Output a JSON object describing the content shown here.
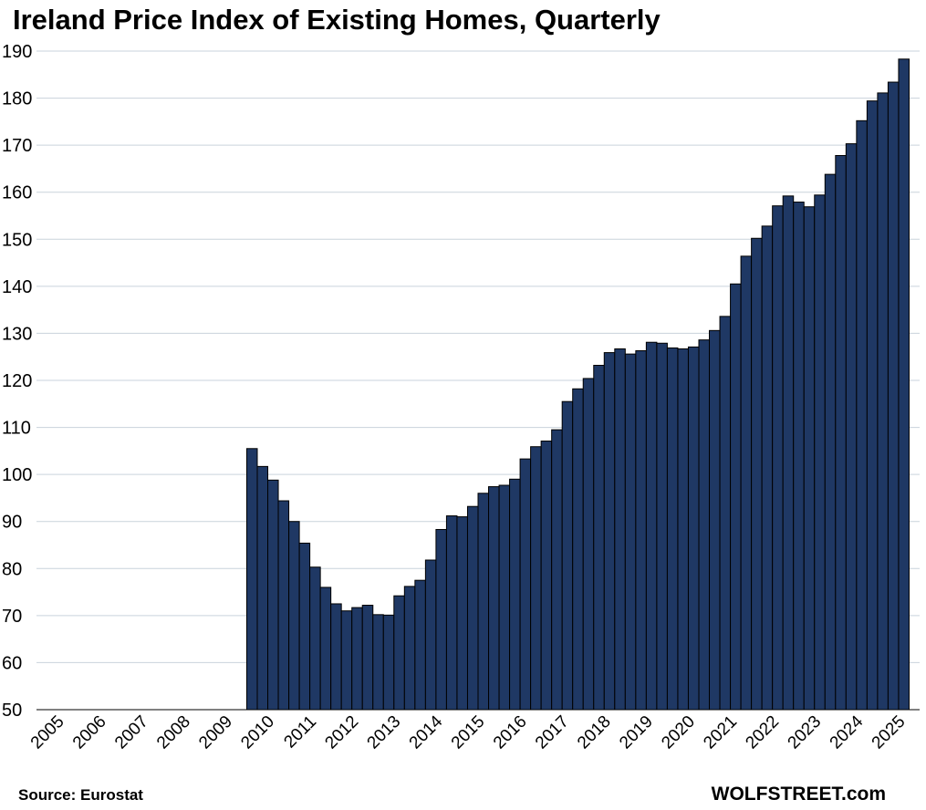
{
  "chart_data": {
    "type": "bar",
    "title": "Ireland Price Index of Existing Homes, Quarterly",
    "xlabel": "",
    "ylabel": "",
    "ylim": [
      50,
      190
    ],
    "yticks": [
      50,
      60,
      70,
      80,
      90,
      100,
      110,
      120,
      130,
      140,
      150,
      160,
      170,
      180,
      190
    ],
    "xticks": [
      "2005",
      "2006",
      "2007",
      "2008",
      "2009",
      "2010",
      "2011",
      "2012",
      "2013",
      "2014",
      "2015",
      "2016",
      "2017",
      "2018",
      "2019",
      "2020",
      "2021",
      "2022",
      "2023",
      "2024",
      "2025"
    ],
    "first_year": 2005,
    "quarters_per_year": 4,
    "first_data_quarter": "2010 Q1",
    "grid": true,
    "bar_color": "#1f3864",
    "values": [
      105.5,
      101.7,
      98.8,
      94.4,
      90.0,
      85.4,
      80.3,
      76.0,
      72.5,
      71.0,
      71.7,
      72.2,
      70.2,
      70.1,
      74.2,
      76.2,
      77.5,
      81.8,
      88.3,
      91.2,
      91.0,
      93.2,
      96.0,
      97.4,
      97.7,
      99.0,
      103.3,
      105.9,
      107.1,
      109.5,
      115.5,
      118.2,
      120.4,
      123.2,
      125.9,
      126.7,
      125.6,
      126.3,
      128.1,
      127.9,
      126.9,
      126.7,
      127.1,
      128.6,
      130.6,
      133.6,
      140.5,
      146.4,
      150.2,
      152.8,
      157.1,
      159.2,
      157.9,
      156.9,
      159.4,
      163.8,
      167.8,
      170.3,
      175.2,
      179.4,
      181.1,
      183.4,
      188.3
    ]
  },
  "footer": {
    "source": "Source: Eurostat",
    "brand": "WOLFSTREET.com"
  }
}
